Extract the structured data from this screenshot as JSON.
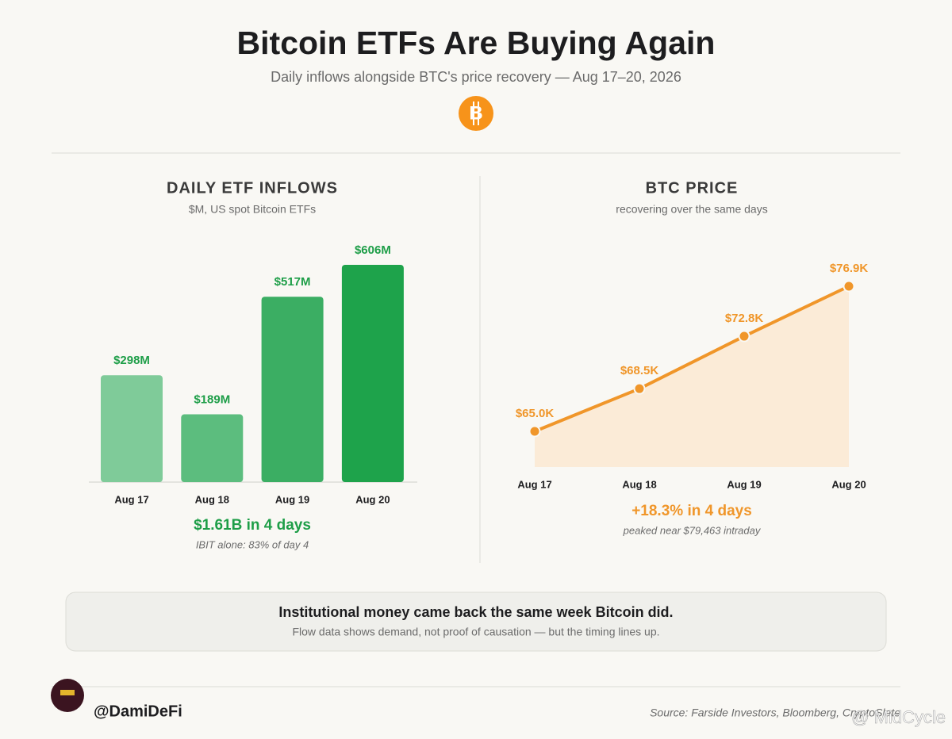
{
  "header": {
    "title": "Bitcoin ETFs Are Buying Again",
    "subtitle": "Daily inflows alongside BTC's price recovery — Aug 17–20, 2026"
  },
  "chart_data": [
    {
      "type": "bar",
      "title": "DAILY ETF INFLOWS",
      "subtitle": "$M, US spot Bitcoin ETFs",
      "categories": [
        "Aug 17",
        "Aug 18",
        "Aug 19",
        "Aug 20"
      ],
      "values": [
        298,
        189,
        517,
        606
      ],
      "value_labels": [
        "$298M",
        "$189M",
        "$517M",
        "$606M"
      ],
      "colors": [
        "#7fcb99",
        "#5cbd7e",
        "#3bae63",
        "#1ea34b"
      ],
      "annotation": "$1.61B in 4 days",
      "note": "IBIT alone: 83% of day 4"
    },
    {
      "type": "line",
      "title": "BTC PRICE",
      "subtitle": "recovering over the same days",
      "categories": [
        "Aug 17",
        "Aug 18",
        "Aug 19",
        "Aug 20"
      ],
      "values": [
        65000,
        68500,
        72800,
        76900
      ],
      "value_labels": [
        "$65.0K",
        "$68.5K",
        "$72.8K",
        "$76.9K"
      ],
      "color": "#f0962a",
      "area_color": "#fbebd7",
      "annotation": "+18.3% in 4 days",
      "note": "peaked near $79,463 intraday"
    }
  ],
  "callout": {
    "headline": "Institutional money came back the same week Bitcoin did.",
    "text": "Flow data shows demand, not proof of causation — but the timing lines up."
  },
  "footer": {
    "handle": "@DamiDeFi",
    "source": "Source: Farside Investors, Bloomberg, CryptoSlate",
    "watermark": "@ MidCycle"
  }
}
